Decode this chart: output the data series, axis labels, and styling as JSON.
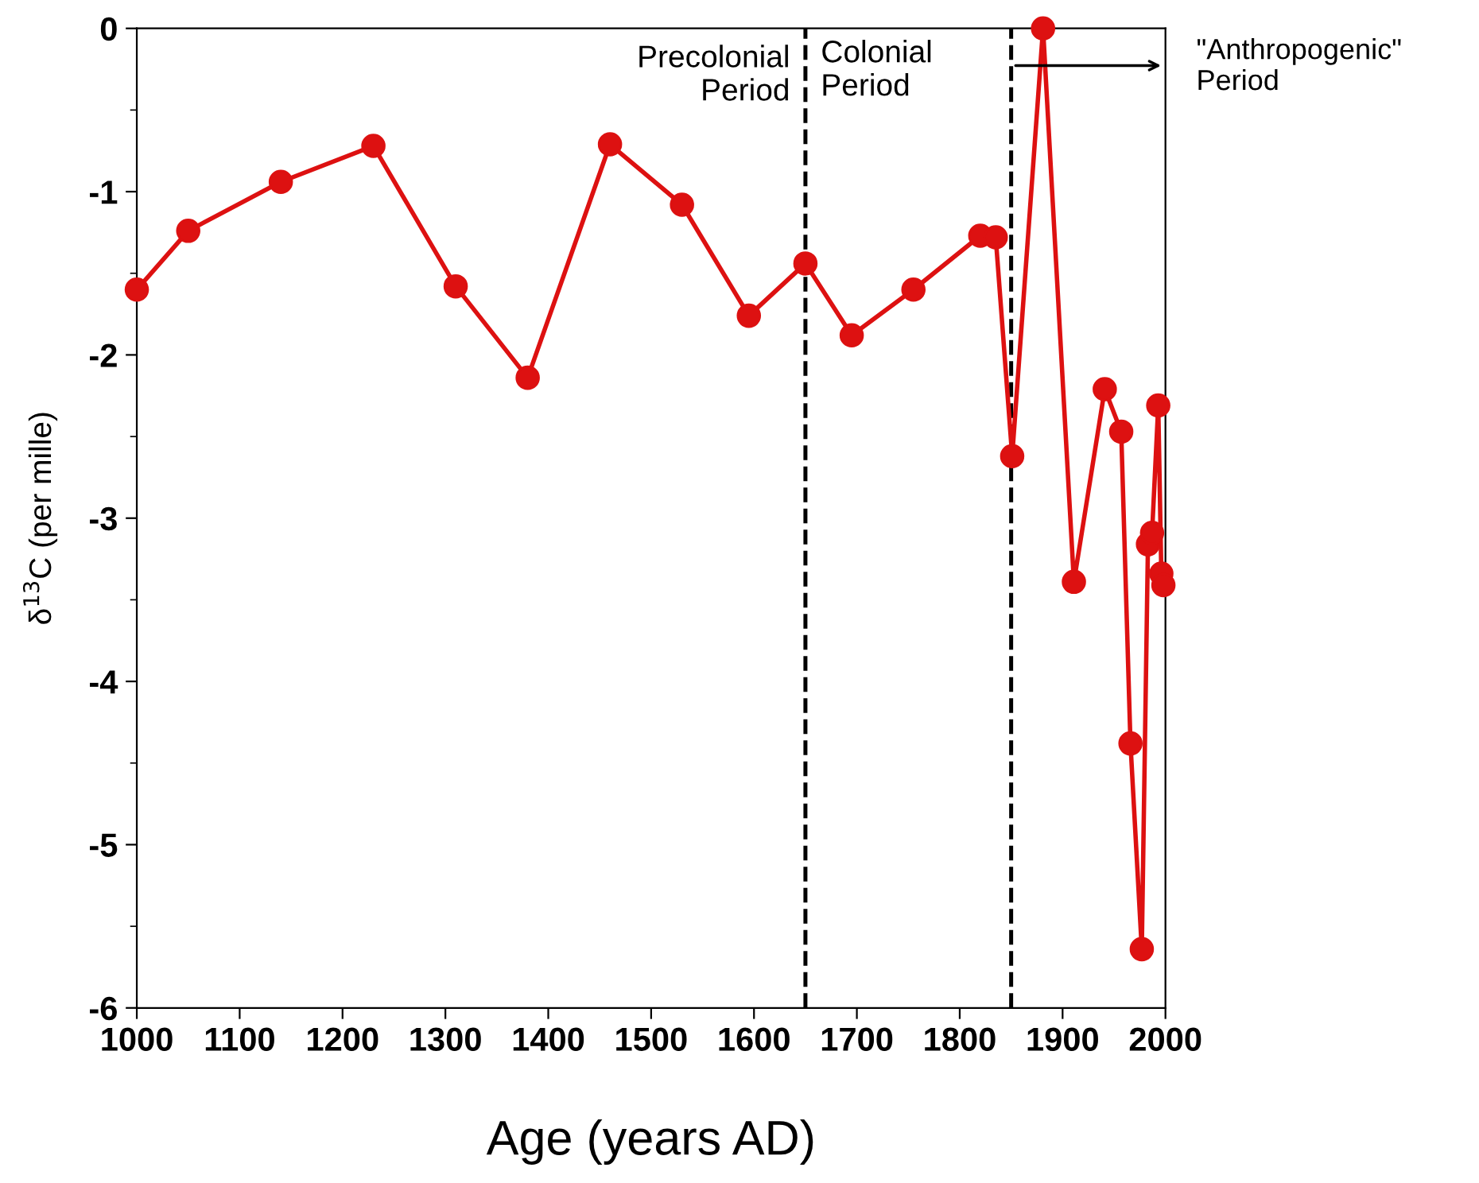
{
  "chart_data": {
    "type": "line",
    "xlabel": "Age (years AD)",
    "ylabel": "δ$^{13}$C (per mille)",
    "x": [
      1000,
      1050,
      1140,
      1230,
      1310,
      1380,
      1460,
      1530,
      1595,
      1650,
      1695,
      1755,
      1820,
      1835,
      1851,
      1881,
      1911,
      1941,
      1957,
      1966,
      1977,
      1983,
      1987,
      1993,
      1996,
      1998
    ],
    "series": [
      {
        "color": "#dd1111",
        "values": [
          -1.6,
          -1.24,
          -0.94,
          -0.72,
          -1.58,
          -2.14,
          -0.71,
          -1.08,
          -1.76,
          -1.44,
          -1.88,
          -1.6,
          -1.27,
          -1.28,
          -2.62,
          0.0,
          -3.39,
          -2.21,
          -2.47,
          -4.38,
          -5.64,
          -3.16,
          -3.09,
          -2.31,
          -3.34,
          -3.41
        ]
      }
    ],
    "marker": "circle",
    "line_style": "solid",
    "grid": false,
    "xlim": [
      1000,
      2000
    ],
    "xticks": [
      1000,
      1100,
      1200,
      1300,
      1400,
      1500,
      1600,
      1700,
      1800,
      1900,
      2000
    ],
    "ylim": [
      -6,
      0
    ],
    "yticks": [
      -6,
      -5,
      -4,
      -3,
      -2,
      -1,
      0
    ],
    "ref_lines": [
      {
        "axis": "x",
        "value": 1650,
        "color": "#000000",
        "line_style": "dashed"
      },
      {
        "axis": "x",
        "value": 1850,
        "color": "#000000",
        "line_style": "dashed"
      }
    ],
    "annotations": [
      "Precolonial\nPeriod",
      "Colonial\nPeriod",
      "\"Anthropogenic\"\nPeriod"
    ]
  }
}
